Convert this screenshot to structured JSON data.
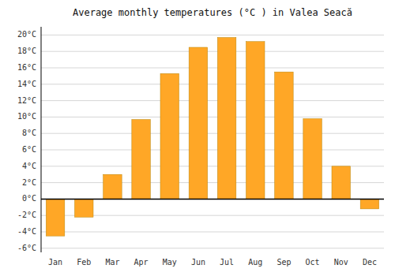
{
  "chart_data": {
    "type": "bar",
    "title": "Average monthly temperatures (°C ) in Valea Seacă",
    "categories": [
      "Jan",
      "Feb",
      "Mar",
      "Apr",
      "May",
      "Jun",
      "Jul",
      "Aug",
      "Sep",
      "Oct",
      "Nov",
      "Dec"
    ],
    "values": [
      -4.5,
      -2.2,
      3.0,
      9.7,
      15.3,
      18.5,
      19.7,
      19.2,
      15.5,
      9.8,
      4.0,
      -1.2
    ],
    "color": "#FFA726",
    "ylim": [
      -6.5,
      21
    ],
    "yticks": [
      {
        "value": -6,
        "label": "-6°C"
      },
      {
        "value": -4,
        "label": "-4°C"
      },
      {
        "value": -2,
        "label": "-2°C"
      },
      {
        "value": 0,
        "label": "0°C"
      },
      {
        "value": 2,
        "label": "2°C"
      },
      {
        "value": 4,
        "label": "4°C"
      },
      {
        "value": 6,
        "label": "6°C"
      },
      {
        "value": 8,
        "label": "8°C"
      },
      {
        "value": 10,
        "label": "10°C"
      },
      {
        "value": 12,
        "label": "12°C"
      },
      {
        "value": 14,
        "label": "14°C"
      },
      {
        "value": 16,
        "label": "16°C"
      },
      {
        "value": 18,
        "label": "18°C"
      },
      {
        "value": 20,
        "label": "20°C"
      }
    ],
    "grid": true
  }
}
